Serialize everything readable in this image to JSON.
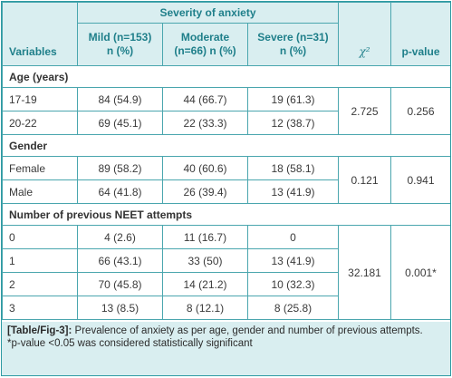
{
  "header": {
    "variables": "Variables",
    "severity": "Severity of anxiety",
    "mild": "Mild (n=153)",
    "moderate": "Moderate",
    "moderate_n": "(n=66) n (%)",
    "severe": "Severe (n=31)",
    "n_pct": "n (%)",
    "chi": "χ²",
    "pvalue": "p-value"
  },
  "sections": {
    "age": "Age (years)",
    "gender": "Gender",
    "neet": "Number of previous NEET attempts"
  },
  "age": {
    "rows": [
      {
        "label": "17-19",
        "mild": "84 (54.9)",
        "moderate": "44 (66.7)",
        "severe": "19 (61.3)"
      },
      {
        "label": "20-22",
        "mild": "69 (45.1)",
        "moderate": "22 (33.3)",
        "severe": "12 (38.7)"
      }
    ],
    "chi": "2.725",
    "p": "0.256"
  },
  "gender": {
    "rows": [
      {
        "label": "Female",
        "mild": "89 (58.2)",
        "moderate": "40 (60.6)",
        "severe": "18 (58.1)"
      },
      {
        "label": "Male",
        "mild": "64 (41.8)",
        "moderate": "26 (39.4)",
        "severe": "13 (41.9)"
      }
    ],
    "chi": "0.121",
    "p": "0.941"
  },
  "neet": {
    "rows": [
      {
        "label": "0",
        "mild": "4 (2.6)",
        "moderate": "11 (16.7)",
        "severe": "0"
      },
      {
        "label": "1",
        "mild": "66 (43.1)",
        "moderate": "33 (50)",
        "severe": "13 (41.9)"
      },
      {
        "label": "2",
        "mild": "70 (45.8)",
        "moderate": "14 (21.2)",
        "severe": "10 (32.3)"
      },
      {
        "label": "3",
        "mild": "13 (8.5)",
        "moderate": "8 (12.1)",
        "severe": "8 (25.8)"
      }
    ],
    "chi": "32.181",
    "p": "0.001*"
  },
  "caption": {
    "tag": "[Table/Fig-3]:",
    "text": "Prevalence of anxiety as per age, gender and number of previous attempts.",
    "note": "*p-value <0.05 was considered statistically significant"
  },
  "colors": {
    "border": "#4aa6ae",
    "header_bg": "#d9eef0",
    "header_text": "#1f7f8a"
  }
}
